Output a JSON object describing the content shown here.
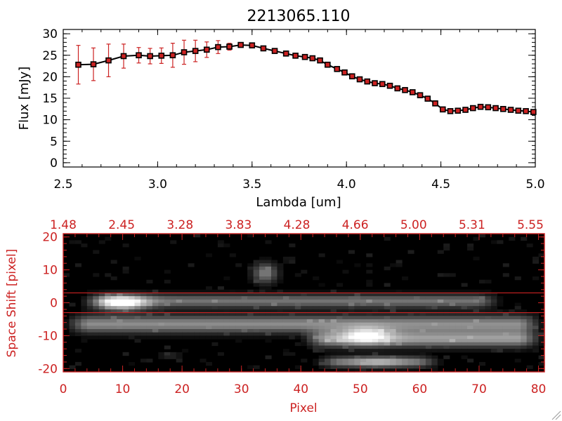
{
  "chart_data": [
    {
      "type": "line",
      "title": "2213065.110",
      "xlabel": "Lambda [um]",
      "ylabel": "Flux [mJy]",
      "xlim": [
        2.5,
        5.0
      ],
      "ylim": [
        -1,
        31
      ],
      "xticks": [
        "2.5",
        "3.0",
        "3.5",
        "4.0",
        "4.5",
        "5.0"
      ],
      "yticks": [
        "0",
        "5",
        "10",
        "15",
        "20",
        "25",
        "30"
      ],
      "colors": {
        "line": "#000000",
        "marker": "#cc2222",
        "errorbar": "#cc2222"
      },
      "series": [
        {
          "x": [
            2.58,
            2.66,
            2.74,
            2.82,
            2.9,
            2.96,
            3.02,
            3.08,
            3.14,
            3.2,
            3.26,
            3.32,
            3.38,
            3.44,
            3.5,
            3.56,
            3.62,
            3.68,
            3.73,
            3.78,
            3.82,
            3.86,
            3.9,
            3.95,
            3.99,
            4.03,
            4.07,
            4.11,
            4.15,
            4.19,
            4.23,
            4.27,
            4.31,
            4.35,
            4.39,
            4.43,
            4.47,
            4.51,
            4.55,
            4.59,
            4.63,
            4.67,
            4.71,
            4.75,
            4.79,
            4.83,
            4.87,
            4.91,
            4.95,
            4.99
          ],
          "y": [
            22.8,
            22.9,
            23.8,
            24.8,
            25.0,
            24.8,
            24.9,
            25.0,
            25.7,
            26.0,
            26.3,
            26.9,
            27.0,
            27.4,
            27.3,
            26.6,
            26.0,
            25.4,
            24.9,
            24.6,
            24.3,
            23.8,
            22.8,
            21.8,
            21.0,
            20.1,
            19.4,
            18.9,
            18.5,
            18.3,
            17.9,
            17.3,
            16.9,
            16.4,
            15.7,
            14.9,
            13.8,
            12.4,
            12.0,
            12.1,
            12.3,
            12.7,
            13.0,
            12.9,
            12.7,
            12.5,
            12.3,
            12.1,
            12.0,
            11.8
          ],
          "yerr": [
            4.5,
            3.8,
            3.8,
            2.8,
            1.8,
            1.8,
            1.8,
            2.8,
            2.8,
            2.5,
            1.8,
            1.5,
            0.8,
            0.5,
            0.4,
            0.3,
            0.3,
            0.3,
            0.3,
            0.3,
            0.3,
            0.3,
            0.3,
            0.3,
            0.3,
            0.3,
            0.3,
            0.3,
            0.3,
            0.3,
            0.3,
            0.3,
            0.3,
            0.3,
            0.3,
            0.3,
            0.3,
            0.3,
            0.3,
            0.3,
            0.3,
            0.3,
            0.3,
            0.3,
            0.3,
            0.3,
            0.3,
            0.3,
            0.3,
            0.3
          ]
        }
      ]
    },
    {
      "type": "heatmap",
      "xlabel": "Pixel",
      "ylabel": "Space Shift [pixel]",
      "xlim": [
        0,
        81
      ],
      "ylim": [
        -21,
        21
      ],
      "xticks": [
        "0",
        "10",
        "20",
        "30",
        "40",
        "50",
        "60",
        "70",
        "80"
      ],
      "yticks": [
        "-20",
        "-10",
        "0",
        "10",
        "20"
      ],
      "top_axis_ticks": [
        "1.48",
        "2.45",
        "3.28",
        "3.83",
        "4.28",
        "4.66",
        "5.00",
        "5.31",
        "5.55"
      ],
      "extraction_aperture": [
        -3,
        3
      ],
      "colormap": "grayscale",
      "colors": {
        "axis": "#cc2222",
        "aperture": "#cc2222",
        "background": "#000000"
      },
      "traces": [
        {
          "from": 3,
          "to": 74,
          "center": 0.5,
          "width": 2.0,
          "peak": 0.45
        },
        {
          "from": 0,
          "to": 81,
          "center": -6.5,
          "width": 2.6,
          "peak": 0.55
        },
        {
          "from": 40,
          "to": 81,
          "center": -11.0,
          "width": 2.4,
          "peak": 0.6
        },
        {
          "from": 42,
          "to": 64,
          "center": -18.0,
          "width": 1.6,
          "peak": 0.45
        }
      ],
      "blobs": [
        {
          "x": 10,
          "y": 0,
          "sx": 4,
          "sy": 2.2,
          "peak": 0.8
        },
        {
          "x": 51,
          "y": -10,
          "sx": 4,
          "sy": 2.5,
          "peak": 0.55
        },
        {
          "x": 53,
          "y": -18,
          "sx": 5,
          "sy": 1.6,
          "peak": 0.3
        },
        {
          "x": 18,
          "y": -16,
          "sx": 2,
          "sy": 1.2,
          "peak": 0.15
        },
        {
          "x": 34,
          "y": 9,
          "sx": 2,
          "sy": 3,
          "peak": 0.5
        }
      ]
    }
  ]
}
